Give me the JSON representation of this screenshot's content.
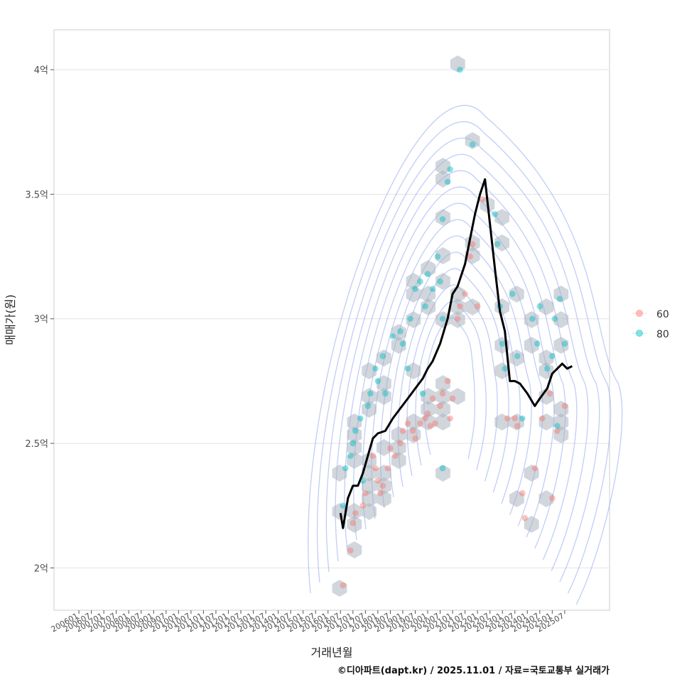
{
  "chart_data": {
    "type": "scatter",
    "title": "",
    "xlabel": "거래년월",
    "ylabel": "매매가(원)",
    "ylim": [
      1.83,
      4.16
    ],
    "y_unit_suffix": "억",
    "y_ticks": [
      {
        "value": 2.0,
        "label": "2억"
      },
      {
        "value": 2.5,
        "label": "2.5억"
      },
      {
        "value": 3.0,
        "label": "3억"
      },
      {
        "value": 3.5,
        "label": "3.5억"
      },
      {
        "value": 4.0,
        "label": "4억"
      }
    ],
    "x_range": [
      2005.0,
      2027.3
    ],
    "x_ticks": [
      {
        "value": 2006.0,
        "label": "200601"
      },
      {
        "value": 2006.5,
        "label": "200607"
      },
      {
        "value": 2007.0,
        "label": "200701"
      },
      {
        "value": 2007.5,
        "label": "200707"
      },
      {
        "value": 2008.0,
        "label": "200801"
      },
      {
        "value": 2008.5,
        "label": "200807"
      },
      {
        "value": 2009.0,
        "label": "200901"
      },
      {
        "value": 2009.5,
        "label": "200907"
      },
      {
        "value": 2010.0,
        "label": "201001"
      },
      {
        "value": 2010.5,
        "label": "201007"
      },
      {
        "value": 2011.0,
        "label": "201101"
      },
      {
        "value": 2011.5,
        "label": "201107"
      },
      {
        "value": 2012.0,
        "label": "201201"
      },
      {
        "value": 2012.5,
        "label": "201207"
      },
      {
        "value": 2013.0,
        "label": "201301"
      },
      {
        "value": 2013.5,
        "label": "201307"
      },
      {
        "value": 2014.0,
        "label": "201401"
      },
      {
        "value": 2014.5,
        "label": "201407"
      },
      {
        "value": 2015.0,
        "label": "201501"
      },
      {
        "value": 2015.5,
        "label": "201507"
      },
      {
        "value": 2016.0,
        "label": "201601"
      },
      {
        "value": 2016.5,
        "label": "201607"
      },
      {
        "value": 2017.0,
        "label": "201701"
      },
      {
        "value": 2017.5,
        "label": "201707"
      },
      {
        "value": 2018.0,
        "label": "201801"
      },
      {
        "value": 2018.5,
        "label": "201807"
      },
      {
        "value": 2019.0,
        "label": "201901"
      },
      {
        "value": 2019.5,
        "label": "201907"
      },
      {
        "value": 2020.0,
        "label": "202001"
      },
      {
        "value": 2020.5,
        "label": "202007"
      },
      {
        "value": 2021.0,
        "label": "202101"
      },
      {
        "value": 2021.5,
        "label": "202107"
      },
      {
        "value": 2022.0,
        "label": "202201"
      },
      {
        "value": 2022.5,
        "label": "202207"
      },
      {
        "value": 2023.0,
        "label": "202301"
      },
      {
        "value": 2023.5,
        "label": "202307"
      },
      {
        "value": 2024.0,
        "label": "202401"
      },
      {
        "value": 2024.5,
        "label": "202407"
      },
      {
        "value": 2025.0,
        "label": "202501"
      },
      {
        "value": 2025.5,
        "label": "202507"
      }
    ],
    "grid": true,
    "legend": {
      "position": "right",
      "entries": [
        {
          "name": "60",
          "color": "#F8766D"
        },
        {
          "name": "80",
          "color": "#00BFC4"
        }
      ]
    },
    "series": [
      {
        "name": "60",
        "color": "#F8766D",
        "points": [
          [
            2016.6,
            1.93
          ],
          [
            2016.9,
            2.07
          ],
          [
            2017.0,
            2.18
          ],
          [
            2017.1,
            2.22
          ],
          [
            2017.4,
            2.25
          ],
          [
            2017.5,
            2.3
          ],
          [
            2017.8,
            2.45
          ],
          [
            2017.9,
            2.4
          ],
          [
            2018.0,
            2.35
          ],
          [
            2018.1,
            2.3
          ],
          [
            2018.2,
            2.33
          ],
          [
            2018.4,
            2.4
          ],
          [
            2018.5,
            2.48
          ],
          [
            2018.7,
            2.45
          ],
          [
            2018.9,
            2.5
          ],
          [
            2019.0,
            2.55
          ],
          [
            2019.2,
            2.58
          ],
          [
            2019.4,
            2.55
          ],
          [
            2019.5,
            2.52
          ],
          [
            2019.7,
            2.58
          ],
          [
            2019.9,
            2.6
          ],
          [
            2020.0,
            2.62
          ],
          [
            2020.2,
            2.68
          ],
          [
            2020.3,
            2.58
          ],
          [
            2020.5,
            2.65
          ],
          [
            2020.6,
            2.7
          ],
          [
            2020.8,
            2.75
          ],
          [
            2020.9,
            2.6
          ],
          [
            2021.0,
            2.68
          ],
          [
            2021.2,
            3.0
          ],
          [
            2021.3,
            3.05
          ],
          [
            2021.5,
            3.1
          ],
          [
            2021.7,
            3.25
          ],
          [
            2021.8,
            3.3
          ],
          [
            2022.2,
            3.48
          ],
          [
            2022.0,
            3.05
          ],
          [
            2023.2,
            2.6
          ],
          [
            2023.5,
            2.6
          ],
          [
            2023.8,
            2.3
          ],
          [
            2023.9,
            2.2
          ],
          [
            2024.3,
            2.4
          ],
          [
            2024.6,
            2.6
          ],
          [
            2024.9,
            2.7
          ],
          [
            2025.2,
            2.55
          ],
          [
            2025.5,
            2.65
          ],
          [
            2025.0,
            2.28
          ],
          [
            2023.6,
            2.57
          ],
          [
            2020.1,
            2.57
          ]
        ]
      },
      {
        "name": "80",
        "color": "#00BFC4",
        "points": [
          [
            2016.6,
            2.25
          ],
          [
            2016.7,
            2.4
          ],
          [
            2016.9,
            2.45
          ],
          [
            2017.0,
            2.5
          ],
          [
            2017.1,
            2.55
          ],
          [
            2017.3,
            2.6
          ],
          [
            2017.4,
            2.35
          ],
          [
            2017.6,
            2.65
          ],
          [
            2017.7,
            2.7
          ],
          [
            2017.9,
            2.8
          ],
          [
            2018.0,
            2.75
          ],
          [
            2018.2,
            2.85
          ],
          [
            2018.3,
            2.7
          ],
          [
            2018.6,
            2.93
          ],
          [
            2018.9,
            2.95
          ],
          [
            2019.0,
            2.9
          ],
          [
            2019.2,
            2.8
          ],
          [
            2019.3,
            3.0
          ],
          [
            2019.5,
            3.12
          ],
          [
            2019.7,
            3.15
          ],
          [
            2019.9,
            3.05
          ],
          [
            2020.0,
            3.18
          ],
          [
            2020.2,
            3.12
          ],
          [
            2020.4,
            3.25
          ],
          [
            2020.5,
            3.15
          ],
          [
            2020.6,
            3.0
          ],
          [
            2020.6,
            3.4
          ],
          [
            2020.8,
            3.55
          ],
          [
            2020.9,
            3.6
          ],
          [
            2021.3,
            4.0
          ],
          [
            2021.8,
            3.7
          ],
          [
            2022.7,
            3.42
          ],
          [
            2022.8,
            3.3
          ],
          [
            2022.9,
            3.05
          ],
          [
            2023.0,
            2.9
          ],
          [
            2023.1,
            2.8
          ],
          [
            2023.4,
            3.1
          ],
          [
            2023.6,
            2.85
          ],
          [
            2023.8,
            2.6
          ],
          [
            2024.2,
            3.0
          ],
          [
            2024.4,
            2.9
          ],
          [
            2024.5,
            3.05
          ],
          [
            2024.8,
            2.8
          ],
          [
            2025.0,
            2.85
          ],
          [
            2025.1,
            3.0
          ],
          [
            2025.3,
            3.08
          ],
          [
            2025.5,
            2.9
          ],
          [
            2025.2,
            2.57
          ],
          [
            2020.6,
            2.4
          ],
          [
            2019.8,
            2.7
          ]
        ]
      }
    ],
    "trend_line": {
      "name": "moving average",
      "color": "#000000",
      "points": [
        [
          2016.5,
          2.22
        ],
        [
          2016.6,
          2.16
        ],
        [
          2016.8,
          2.28
        ],
        [
          2017.0,
          2.33
        ],
        [
          2017.2,
          2.33
        ],
        [
          2017.4,
          2.38
        ],
        [
          2017.6,
          2.45
        ],
        [
          2017.8,
          2.52
        ],
        [
          2018.0,
          2.54
        ],
        [
          2018.3,
          2.55
        ],
        [
          2018.6,
          2.6
        ],
        [
          2018.9,
          2.64
        ],
        [
          2019.2,
          2.68
        ],
        [
          2019.5,
          2.72
        ],
        [
          2019.8,
          2.76
        ],
        [
          2020.0,
          2.8
        ],
        [
          2020.2,
          2.83
        ],
        [
          2020.5,
          2.9
        ],
        [
          2020.8,
          3.0
        ],
        [
          2021.0,
          3.1
        ],
        [
          2021.2,
          3.13
        ],
        [
          2021.5,
          3.22
        ],
        [
          2021.7,
          3.32
        ],
        [
          2021.9,
          3.42
        ],
        [
          2022.1,
          3.5
        ],
        [
          2022.3,
          3.56
        ],
        [
          2022.5,
          3.38
        ],
        [
          2022.7,
          3.2
        ],
        [
          2022.9,
          3.03
        ],
        [
          2023.1,
          2.95
        ],
        [
          2023.3,
          2.75
        ],
        [
          2023.5,
          2.75
        ],
        [
          2023.7,
          2.74
        ],
        [
          2024.0,
          2.7
        ],
        [
          2024.3,
          2.65
        ],
        [
          2024.5,
          2.68
        ],
        [
          2024.8,
          2.72
        ],
        [
          2025.0,
          2.78
        ],
        [
          2025.2,
          2.8
        ],
        [
          2025.4,
          2.82
        ],
        [
          2025.6,
          2.8
        ],
        [
          2025.8,
          2.81
        ]
      ]
    },
    "annotations": [
      "density contours (blue)",
      "hexagonal bins (grey)"
    ]
  },
  "caption": "©디아파트(dapt.kr) / 2025.11.01 / 자료=국토교통부 실거래가"
}
